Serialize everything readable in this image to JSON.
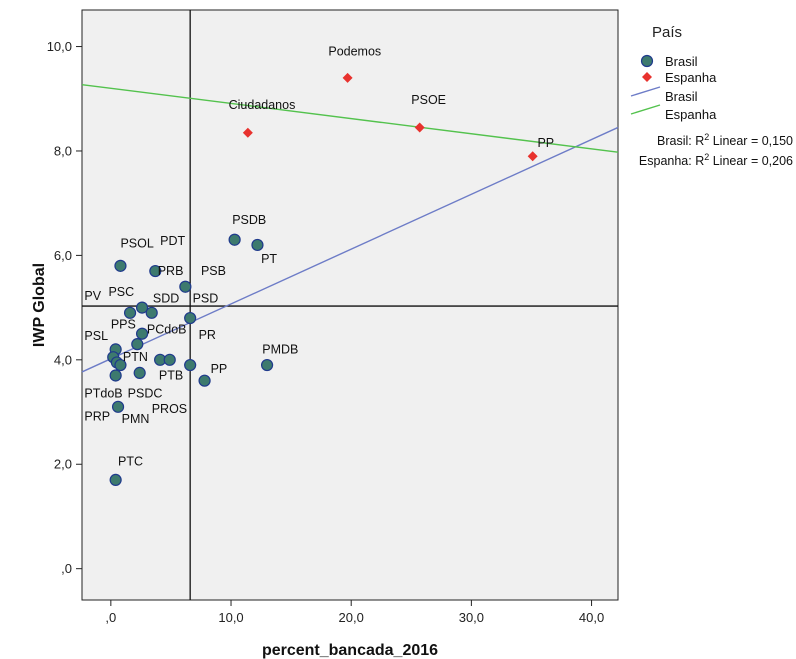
{
  "chart_data": {
    "type": "scatter",
    "xlabel": "percent_bancada_2016",
    "ylabel": "IWP Global",
    "xlim": [
      -2.4,
      42.2
    ],
    "ylim": [
      -0.6,
      10.7
    ],
    "x_ticks": [
      {
        "value": 0,
        "label": ",0"
      },
      {
        "value": 10,
        "label": "10,0"
      },
      {
        "value": 20,
        "label": "20,0"
      },
      {
        "value": 30,
        "label": "30,0"
      },
      {
        "value": 40,
        "label": "40,0"
      }
    ],
    "y_ticks": [
      {
        "value": 0,
        "label": ",0"
      },
      {
        "value": 2,
        "label": "2,0"
      },
      {
        "value": 4,
        "label": "4,0"
      },
      {
        "value": 6,
        "label": "6,0"
      },
      {
        "value": 8,
        "label": "8,0"
      },
      {
        "value": 10,
        "label": "10,0"
      }
    ],
    "reference_lines": {
      "x": 6.6,
      "y": 5.03
    },
    "legend": {
      "title": "País",
      "position": "right",
      "entries": [
        {
          "label": "Brasil",
          "kind": "circle",
          "color": "#3d7a6e",
          "stroke": "#1f3a8c"
        },
        {
          "label": "Espanha",
          "kind": "diamond",
          "color": "#e8322e"
        },
        {
          "label": "Brasil",
          "kind": "line",
          "color": "#6d7cc7"
        },
        {
          "label": "Espanha",
          "kind": "line",
          "color": "#53c24d"
        }
      ]
    },
    "r2_labels": [
      {
        "prefix": "Brasil: R",
        "sup": "2",
        "suffix": " Linear = 0,150"
      },
      {
        "prefix": "Espanha: R",
        "sup": "2",
        "suffix": " Linear = 0,206"
      }
    ],
    "fit_lines": [
      {
        "name": "Brasil",
        "color": "#6d7cc7",
        "intercept": 4.02,
        "slope": 0.105
      },
      {
        "name": "Espanha",
        "color": "#53c24d",
        "intercept": 9.2,
        "slope": -0.029
      }
    ],
    "series": [
      {
        "name": "Brasil",
        "marker": "circle",
        "color": "#3d7a6e",
        "stroke": "#1f3a8c",
        "points": [
          {
            "x": 0.8,
            "y": 5.8
          },
          {
            "x": 3.7,
            "y": 5.7
          },
          {
            "x": 10.3,
            "y": 6.3
          },
          {
            "x": 12.2,
            "y": 6.2
          },
          {
            "x": 6.2,
            "y": 5.4
          },
          {
            "x": 2.6,
            "y": 5.0
          },
          {
            "x": 1.6,
            "y": 4.9
          },
          {
            "x": 3.4,
            "y": 4.9
          },
          {
            "x": 6.6,
            "y": 4.8
          },
          {
            "x": 2.6,
            "y": 4.5
          },
          {
            "x": 2.2,
            "y": 4.3
          },
          {
            "x": 0.4,
            "y": 4.2
          },
          {
            "x": 0.2,
            "y": 4.05
          },
          {
            "x": 0.5,
            "y": 3.95
          },
          {
            "x": 0.8,
            "y": 3.9
          },
          {
            "x": 4.1,
            "y": 4.0
          },
          {
            "x": 4.9,
            "y": 4.0
          },
          {
            "x": 6.6,
            "y": 3.9
          },
          {
            "x": 13.0,
            "y": 3.9
          },
          {
            "x": 2.4,
            "y": 3.75
          },
          {
            "x": 0.4,
            "y": 3.7
          },
          {
            "x": 7.8,
            "y": 3.6
          },
          {
            "x": 0.6,
            "y": 3.1
          },
          {
            "x": 0.4,
            "y": 1.7
          }
        ]
      },
      {
        "name": "Espanha",
        "marker": "diamond",
        "color": "#e8322e",
        "points": [
          {
            "x": 19.7,
            "y": 9.4
          },
          {
            "x": 11.4,
            "y": 8.35
          },
          {
            "x": 25.7,
            "y": 8.45
          },
          {
            "x": 35.1,
            "y": 7.9
          }
        ]
      }
    ],
    "annotations": [
      {
        "text": "PSOL",
        "x": 0.8,
        "y": 6.15
      },
      {
        "text": "PDT",
        "x": 4.1,
        "y": 6.2
      },
      {
        "text": "PSDB",
        "x": 10.1,
        "y": 6.6
      },
      {
        "text": "PT",
        "x": 12.5,
        "y": 5.85
      },
      {
        "text": "PRB",
        "x": 3.9,
        "y": 5.62
      },
      {
        "text": "PSB",
        "x": 7.5,
        "y": 5.62
      },
      {
        "text": "PV",
        "x": -2.2,
        "y": 5.15
      },
      {
        "text": "PSC",
        "x": -0.2,
        "y": 5.22
      },
      {
        "text": "SDD",
        "x": 3.5,
        "y": 5.1
      },
      {
        "text": "PSD",
        "x": 6.8,
        "y": 5.1
      },
      {
        "text": "PPS",
        "x": 0.0,
        "y": 4.6
      },
      {
        "text": "PCdoB",
        "x": 3.0,
        "y": 4.5
      },
      {
        "text": "PR",
        "x": 7.3,
        "y": 4.4
      },
      {
        "text": "PSL",
        "x": -2.2,
        "y": 4.38
      },
      {
        "text": "PTN",
        "x": 1.0,
        "y": 3.98
      },
      {
        "text": "PMDB",
        "x": 12.6,
        "y": 4.12
      },
      {
        "text": "PP",
        "x": 8.3,
        "y": 3.75
      },
      {
        "text": "PTB",
        "x": 4.0,
        "y": 3.62
      },
      {
        "text": "PTdoB",
        "x": -2.2,
        "y": 3.28
      },
      {
        "text": "PSDC",
        "x": 1.4,
        "y": 3.28
      },
      {
        "text": "PROS",
        "x": 3.4,
        "y": 2.98
      },
      {
        "text": "PRP",
        "x": -2.2,
        "y": 2.84
      },
      {
        "text": "PMN",
        "x": 0.9,
        "y": 2.79
      },
      {
        "text": "PTC",
        "x": 0.6,
        "y": 1.98
      },
      {
        "text": "Podemos",
        "x": 18.1,
        "y": 9.83
      },
      {
        "text": "Ciudadanos",
        "x": 9.8,
        "y": 8.8
      },
      {
        "text": "PSOE",
        "x": 25.0,
        "y": 8.9
      },
      {
        "text": "PP",
        "x": 35.5,
        "y": 8.08
      }
    ]
  }
}
